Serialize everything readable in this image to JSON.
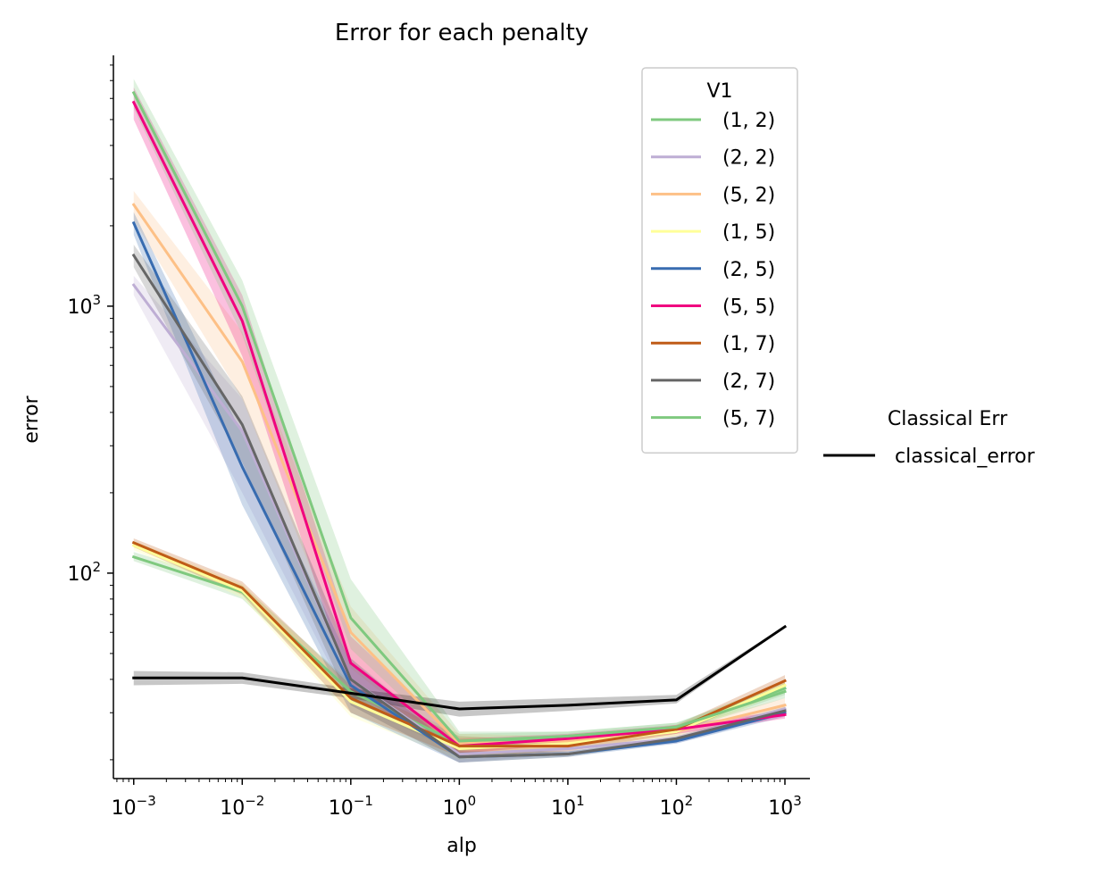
{
  "chart_data": {
    "type": "line",
    "title": "Error for each penalty",
    "xlabel": "alp",
    "ylabel": "error",
    "x_scale": "log",
    "y_scale": "log",
    "x": [
      0.001,
      0.01,
      0.1,
      1,
      10,
      100,
      1000
    ],
    "x_ticks": [
      {
        "base": "10",
        "exp": "−3"
      },
      {
        "base": "10",
        "exp": "−2"
      },
      {
        "base": "10",
        "exp": "−1"
      },
      {
        "base": "10",
        "exp": "0"
      },
      {
        "base": "10",
        "exp": "1"
      },
      {
        "base": "10",
        "exp": "2"
      },
      {
        "base": "10",
        "exp": "3"
      }
    ],
    "y_ticks": [
      {
        "value": 100,
        "base": "10",
        "exp": "2"
      },
      {
        "value": 1000,
        "base": "10",
        "exp": "3"
      }
    ],
    "xlim": [
      0.00065,
      1700
    ],
    "ylim": [
      17,
      8700
    ],
    "grid": false,
    "legends": [
      {
        "title": "V1",
        "placement": "top-right inside"
      },
      {
        "title": "Classical Err",
        "placement": "right outside"
      }
    ],
    "series": [
      {
        "name": "(1, 2)",
        "color": "#7fc97f",
        "legend": 0,
        "values": [
          115,
          85,
          36,
          23,
          24.5,
          26.5,
          37
        ],
        "lower": [
          111,
          80,
          33,
          21,
          23.5,
          25.5,
          35
        ],
        "upper": [
          120,
          90,
          39,
          25,
          25.5,
          27.5,
          39
        ]
      },
      {
        "name": "(2, 2)",
        "color": "#beaed4",
        "legend": 0,
        "values": [
          1200,
          340,
          40,
          21,
          22,
          24,
          31
        ],
        "lower": [
          1100,
          200,
          32,
          19.5,
          21,
          23,
          29.5
        ],
        "upper": [
          1300,
          450,
          48,
          22.5,
          23,
          25,
          32.5
        ]
      },
      {
        "name": "(5, 2)",
        "color": "#fdc086",
        "legend": 0,
        "values": [
          2400,
          620,
          60,
          23,
          23.5,
          25.5,
          32
        ],
        "lower": [
          2100,
          450,
          44,
          21,
          22.5,
          24.5,
          30
        ],
        "upper": [
          2700,
          800,
          75,
          25,
          24.5,
          26.5,
          34
        ]
      },
      {
        "name": "(1, 5)",
        "color": "#ffff99",
        "legend": 0,
        "values": [
          127,
          86,
          33,
          22,
          23,
          25.5,
          38
        ],
        "lower": [
          122,
          81,
          29,
          20,
          22,
          24.5,
          36
        ],
        "upper": [
          132,
          91,
          37,
          24,
          24,
          26.5,
          40
        ]
      },
      {
        "name": "(2, 5)",
        "color": "#386cb0",
        "legend": 0,
        "values": [
          2050,
          250,
          38,
          20.5,
          21,
          23.5,
          30
        ],
        "lower": [
          1850,
          180,
          30,
          19.5,
          20.5,
          23,
          29
        ],
        "upper": [
          2250,
          330,
          46,
          21.5,
          21.5,
          24,
          31
        ]
      },
      {
        "name": "(5, 5)",
        "color": "#f0027f",
        "legend": 0,
        "values": [
          5800,
          880,
          46,
          22.5,
          24,
          26,
          29.5
        ],
        "lower": [
          5000,
          650,
          36,
          21,
          23,
          25,
          28.5
        ],
        "upper": [
          6600,
          1100,
          58,
          24,
          25,
          27,
          30.5
        ]
      },
      {
        "name": "(1, 7)",
        "color": "#bf5b17",
        "legend": 0,
        "values": [
          130,
          88,
          34,
          22.5,
          22.5,
          26,
          39.5
        ],
        "lower": [
          125,
          83,
          30,
          20.5,
          21.5,
          25,
          37.5
        ],
        "upper": [
          135,
          93,
          38,
          24.5,
          23.5,
          27,
          41.5
        ]
      },
      {
        "name": "(2, 7)",
        "color": "#666666",
        "legend": 0,
        "values": [
          1550,
          360,
          40,
          20.5,
          21,
          24,
          30.5
        ],
        "lower": [
          1400,
          260,
          32,
          19.5,
          20.5,
          23.5,
          29.5
        ],
        "upper": [
          1700,
          460,
          48,
          21.5,
          21.5,
          24.5,
          31.5
        ]
      },
      {
        "name": "(5, 7)",
        "color": "#7fc97f",
        "legend": 0,
        "values": [
          6300,
          1000,
          68,
          23.5,
          24.5,
          26.5,
          36
        ],
        "lower": [
          5500,
          780,
          52,
          21.5,
          23.5,
          25.5,
          34
        ],
        "upper": [
          7100,
          1250,
          95,
          25.5,
          25.5,
          27.5,
          38
        ]
      },
      {
        "name": "classical_error",
        "color": "#000000",
        "legend": 1,
        "values": [
          40.5,
          40.5,
          35.5,
          31,
          32,
          33.5,
          63
        ],
        "lower": [
          38,
          38.5,
          34,
          29,
          30.5,
          32.5,
          62.5
        ],
        "upper": [
          43,
          42.5,
          37,
          33,
          34,
          35,
          63.5
        ]
      }
    ]
  }
}
